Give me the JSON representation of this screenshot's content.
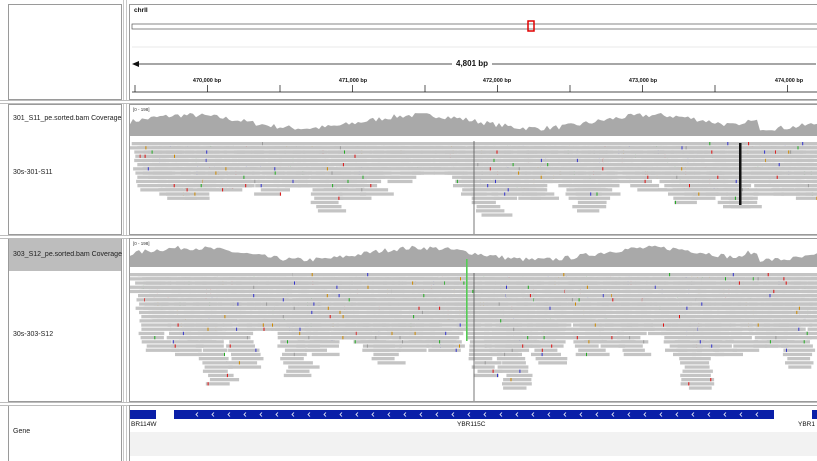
{
  "ruler": {
    "chromosome": "chrII",
    "span_label": "4,801 bp",
    "ticks": [
      "470,000 bp",
      "471,000 bp",
      "472,000 bp",
      "473,000 bp",
      "474,000 bp"
    ]
  },
  "tracks": [
    {
      "coverage_label": "301_S11_pe.sorted.bam Coverage",
      "coverage_range": "[0 - 198]",
      "alignment_label": "30s-301-S11"
    },
    {
      "coverage_label": "303_S12_pe.sorted.bam Coverage",
      "coverage_range": "[0 - 198]",
      "alignment_label": "30s-303-S12"
    }
  ],
  "gene_track": {
    "label": "Gene",
    "genes": [
      "BR114W",
      "YBR115C",
      "YBR1"
    ]
  },
  "colors": {
    "coverage": "#a9a9a9",
    "read": "#c2c2c2",
    "gene": "#0a1fa8",
    "locus_box": "#e00000"
  }
}
